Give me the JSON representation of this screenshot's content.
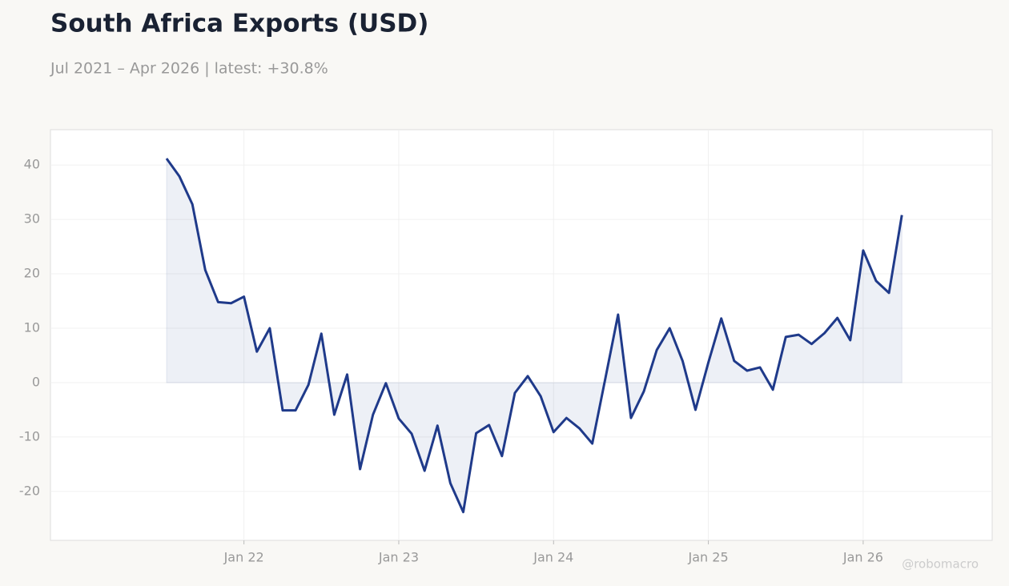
{
  "chart_data": {
    "type": "line",
    "title": "South Africa Exports (USD)",
    "subtitle": "Jul 2021 – Apr 2026 | latest: +30.8%",
    "watermark": "@robomacro",
    "x": [
      "2021-07",
      "2021-08",
      "2021-09",
      "2021-10",
      "2021-11",
      "2021-12",
      "2022-01",
      "2022-02",
      "2022-03",
      "2022-04",
      "2022-05",
      "2022-06",
      "2022-07",
      "2022-08",
      "2022-09",
      "2022-10",
      "2022-11",
      "2022-12",
      "2023-01",
      "2023-02",
      "2023-03",
      "2023-04",
      "2023-05",
      "2023-06",
      "2023-07",
      "2023-08",
      "2023-09",
      "2023-10",
      "2023-11",
      "2023-12",
      "2024-01",
      "2024-02",
      "2024-03",
      "2024-04",
      "2024-05",
      "2024-06",
      "2024-07",
      "2024-08",
      "2024-09",
      "2024-10",
      "2024-11",
      "2024-12",
      "2025-01",
      "2025-02",
      "2025-03",
      "2025-04",
      "2025-05",
      "2025-06",
      "2025-07",
      "2025-08",
      "2025-09",
      "2025-10",
      "2025-11",
      "2025-12",
      "2026-01",
      "2026-02",
      "2026-03",
      "2026-04"
    ],
    "series": [
      {
        "color": "#1f3a8a",
        "values": [
          41.2,
          37.9,
          32.8,
          20.7,
          14.8,
          14.6,
          15.8,
          5.7,
          10.0,
          -5.1,
          -5.1,
          -0.4,
          9.0,
          -5.9,
          1.5,
          -15.9,
          -5.9,
          -0.1,
          -6.6,
          -9.4,
          -16.2,
          -7.9,
          -18.5,
          -23.8,
          -9.3,
          -7.8,
          -13.5,
          -1.9,
          1.2,
          -2.5,
          -9.1,
          -6.5,
          -8.4,
          -11.2,
          0.6,
          12.5,
          -6.5,
          -1.6,
          6.0,
          10.0,
          4.0,
          -5.0,
          3.7,
          11.8,
          4.0,
          2.2,
          2.8,
          -1.3,
          8.4,
          8.8,
          7.1,
          9.1,
          11.9,
          7.8,
          24.3,
          18.7,
          16.5,
          30.8
        ]
      }
    ],
    "xlim": [
      "2020-10",
      "2026-11"
    ],
    "xticks": [
      {
        "value": "2022-01",
        "label": "Jan 22"
      },
      {
        "value": "2023-01",
        "label": "Jan 23"
      },
      {
        "value": "2024-01",
        "label": "Jan 24"
      },
      {
        "value": "2025-01",
        "label": "Jan 25"
      },
      {
        "value": "2026-01",
        "label": "Jan 26"
      }
    ],
    "ylim": [
      -29,
      46.5
    ],
    "yticks": [
      -20,
      -10,
      0,
      10,
      20,
      30,
      40
    ],
    "grid": true
  }
}
